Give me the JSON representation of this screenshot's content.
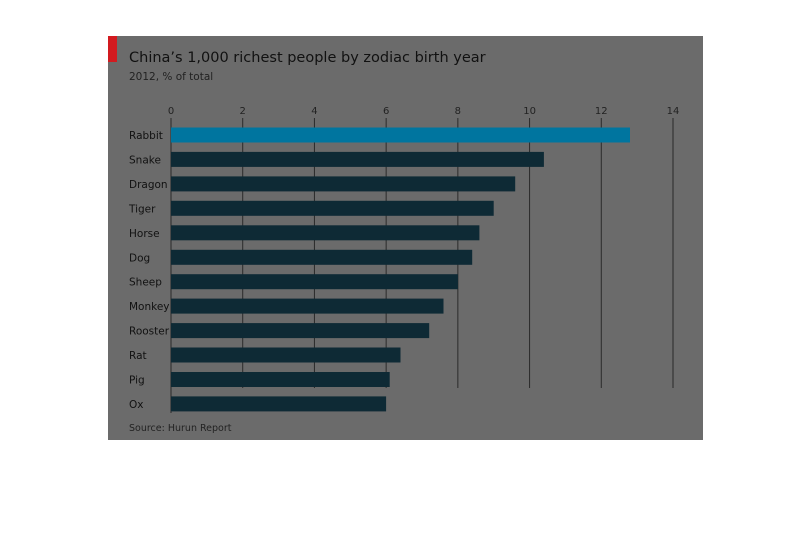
{
  "chart_data": {
    "type": "bar",
    "orientation": "horizontal",
    "title": "China’s 1,000 richest people by zodiac birth year",
    "subtitle": "2012, % of total",
    "categories": [
      "Rabbit",
      "Snake",
      "Dragon",
      "Tiger",
      "Horse",
      "Dog",
      "Sheep",
      "Monkey",
      "Rooster",
      "Rat",
      "Pig",
      "Ox"
    ],
    "values": [
      12.8,
      10.4,
      9.6,
      9.0,
      8.6,
      8.4,
      8.0,
      7.6,
      7.2,
      6.4,
      6.1,
      6.0
    ],
    "highlighted": [
      "Rabbit"
    ],
    "xlim": [
      0,
      14
    ],
    "xticks": [
      "0",
      "2",
      "4",
      "6",
      "8",
      "10",
      "12",
      "14"
    ],
    "xtick_values": [
      0,
      2,
      4,
      6,
      8,
      10,
      12,
      14
    ],
    "grid": "vertical",
    "source": "Source: Hurun Report",
    "colors": {
      "bar": "#0e2a35",
      "highlight_bar": "#00759f",
      "plot_background": "#6b6b6b",
      "gridline": "#2a2a2a",
      "corner_tag": "#d21a1f"
    }
  }
}
